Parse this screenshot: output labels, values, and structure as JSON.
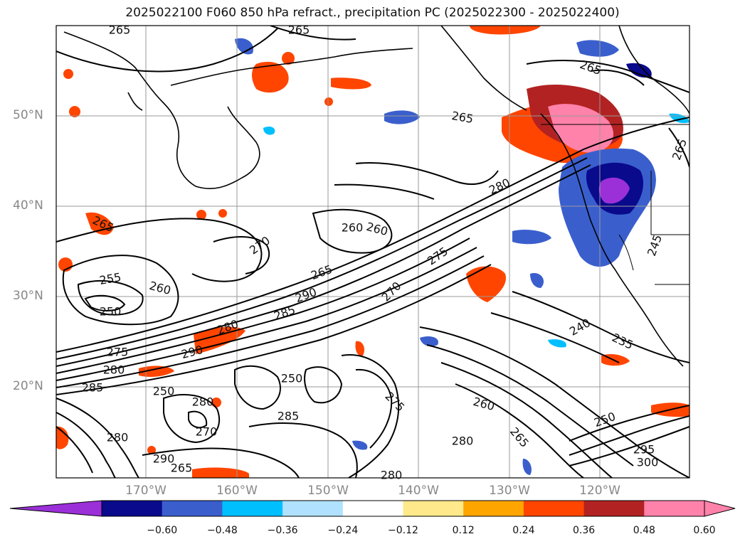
{
  "title": "2025022100 F060 850 hPa refract., precipitation PC (2025022300 - 2025022400)",
  "lat_labels": [
    "50°N",
    "40°N",
    "30°N",
    "20°N"
  ],
  "lon_labels": [
    "170°W",
    "160°W",
    "150°W",
    "140°W",
    "130°W",
    "120°W"
  ],
  "contour_labels": [
    "265",
    "265",
    "265",
    "265",
    "265",
    "265",
    "270",
    "260",
    "255",
    "260",
    "250",
    "265",
    "280",
    "290",
    "285",
    "280",
    "290",
    "275",
    "270",
    "275",
    "250",
    "280",
    "275",
    "285",
    "270",
    "290",
    "265",
    "280",
    "260",
    "265",
    "280",
    "240",
    "235",
    "250",
    "280",
    "300",
    "295",
    "285",
    "245",
    "250",
    "260",
    "280"
  ],
  "colorbar": {
    "ticks": [
      "−0.60",
      "−0.48",
      "−0.36",
      "−0.24",
      "−0.12",
      "0.12",
      "0.24",
      "0.36",
      "0.48",
      "0.60"
    ],
    "colors": [
      "#9b30d9",
      "#0a0a8c",
      "#3a5fcd",
      "#00bfff",
      "#b0e2ff",
      "#ffffff",
      "#ffe98a",
      "#ffa500",
      "#ff4500",
      "#b22222",
      "#ff82ab",
      "#ff82ab"
    ]
  }
}
